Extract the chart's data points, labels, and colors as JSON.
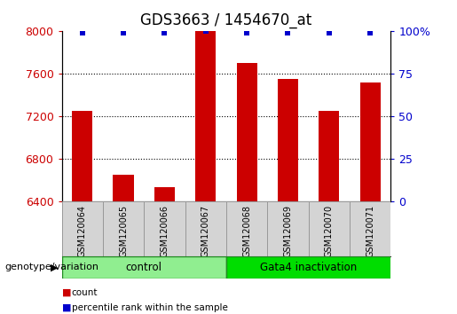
{
  "title": "GDS3663 / 1454670_at",
  "samples": [
    "GSM120064",
    "GSM120065",
    "GSM120066",
    "GSM120067",
    "GSM120068",
    "GSM120069",
    "GSM120070",
    "GSM120071"
  ],
  "counts": [
    7250,
    6650,
    6530,
    8000,
    7700,
    7550,
    7250,
    7520
  ],
  "percentile_ranks": [
    99,
    99,
    99,
    100,
    99,
    99,
    99,
    99
  ],
  "ylim_left": [
    6400,
    8000
  ],
  "ylim_right": [
    0,
    100
  ],
  "yticks_left": [
    6400,
    6800,
    7200,
    7600,
    8000
  ],
  "yticks_right": [
    0,
    25,
    50,
    75,
    100
  ],
  "yticklabels_right": [
    "0",
    "25",
    "50",
    "75",
    "100%"
  ],
  "bar_color": "#cc0000",
  "scatter_color": "#0000cc",
  "groups": [
    {
      "label": "control",
      "start": 0,
      "end": 4,
      "color": "#90ee90"
    },
    {
      "label": "Gata4 inactivation",
      "start": 4,
      "end": 8,
      "color": "#00dd00"
    }
  ],
  "group_label_prefix": "genotype/variation",
  "title_fontsize": 12,
  "tick_fontsize": 9,
  "bar_width": 0.5
}
